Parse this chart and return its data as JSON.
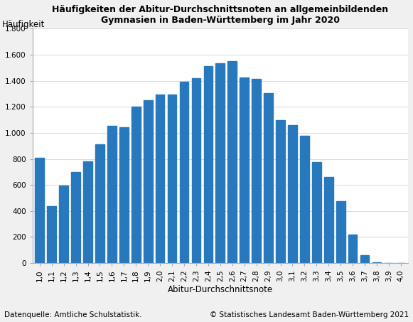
{
  "categories": [
    "1,0",
    "1,1",
    "1,2",
    "1,3",
    "1,4",
    "1,5",
    "1,6",
    "1,7",
    "1,8",
    "1,9",
    "2,0",
    "2,1",
    "2,2",
    "2,3",
    "2,4",
    "2,5",
    "2,6",
    "2,7",
    "2,8",
    "2,9",
    "3,0",
    "3,1",
    "3,2",
    "3,3",
    "3,4",
    "3,5",
    "3,6",
    "3,7",
    "3,8",
    "3,9",
    "4,0"
  ],
  "values": [
    808,
    435,
    598,
    700,
    783,
    912,
    1055,
    1045,
    1200,
    1248,
    1295,
    1295,
    1390,
    1420,
    1515,
    1535,
    1550,
    1425,
    1415,
    1305,
    1100,
    1060,
    980,
    773,
    660,
    478,
    220,
    62,
    8,
    2,
    0
  ],
  "bar_color": "#2878BE",
  "title_line1": "Häufigkeiten der Abitur-Durchschnittsnoten an allgemeinbildenden",
  "title_line2": "Gymnasien in Baden-Württemberg im Jahr 2020",
  "ylabel": "Häufigkeit",
  "xlabel": "Abitur-Durchschnittsnote",
  "ylim": [
    0,
    1800
  ],
  "yticks": [
    0,
    200,
    400,
    600,
    800,
    1000,
    1200,
    1400,
    1600,
    1800
  ],
  "ytick_labels": [
    "0",
    "200",
    "400",
    "600",
    "800",
    "1.000",
    "1.200",
    "1.400",
    "1.600",
    "1.800"
  ],
  "footnote_left": "Datenquelle: Amtliche Schulstatistik.",
  "footnote_right": "© Statistisches Landesamt Baden-Württemberg 2021",
  "bg_color": "#f0f0f0",
  "plot_bg_color": "#ffffff",
  "grid_color": "#cccccc",
  "title_fontsize": 9,
  "axis_label_fontsize": 8.5,
  "tick_fontsize": 7.5,
  "footnote_fontsize": 7.5
}
